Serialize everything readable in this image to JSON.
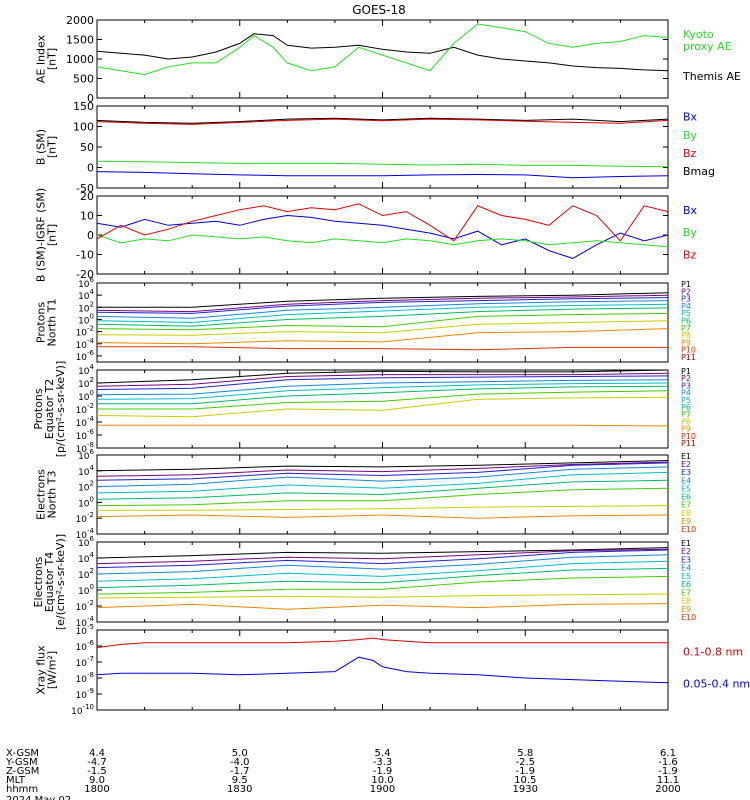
{
  "title": "GOES-18",
  "colors": {
    "black": "#000000",
    "green": "#22dd22",
    "red": "#dd0000",
    "blue": "#0000dd",
    "p": [
      "#000000",
      "#7a0080",
      "#2222cc",
      "#1188dd",
      "#00bbcc",
      "#00bb66",
      "#44cc00",
      "#cccc00",
      "#ee8800",
      "#dd3300",
      "#bb0000",
      "#880000"
    ]
  },
  "time_axis": {
    "hhmm_labels": [
      "1800",
      "1830",
      "1900",
      "1930",
      "2000"
    ],
    "row_labels": [
      "X-GSM",
      "Y-GSM",
      "Z-GSM",
      "MLT",
      "hhmm",
      "2024 May 02"
    ],
    "x_gsm": [
      "4.4",
      "5.0",
      "5.4",
      "5.8",
      "6.1"
    ],
    "y_gsm": [
      "-4.7",
      "-4.0",
      "-3.3",
      "-2.5",
      "-1.6"
    ],
    "z_gsm": [
      "-1.5",
      "-1.7",
      "-1.9",
      "-1.9",
      "-1.9"
    ],
    "mlt": [
      "9.0",
      "9.5",
      "10.0",
      "10.5",
      "11.1"
    ]
  },
  "chart_data": [
    {
      "id": "ae",
      "type": "line",
      "ylabel": [
        "AE Index",
        "[nT]"
      ],
      "ylim": [
        0,
        2000
      ],
      "ticks": [
        "2000",
        "1500",
        "1000",
        "500",
        "0"
      ],
      "legend": [
        {
          "text": "Kyoto",
          "color": "#22dd22"
        },
        {
          "text": "proxy AE",
          "color": "#22dd22"
        },
        {
          "text": "Themis AE",
          "color": "#000000"
        }
      ],
      "x": [
        0,
        5,
        10,
        15,
        20,
        25,
        30,
        33,
        37,
        40,
        45,
        50,
        55,
        60,
        65,
        70,
        75,
        80,
        85,
        90,
        95,
        100,
        105,
        110,
        115,
        120
      ],
      "series": [
        {
          "name": "Themis AE",
          "color": "#000000",
          "values": [
            1200,
            1150,
            1100,
            1000,
            1050,
            1180,
            1400,
            1650,
            1600,
            1350,
            1280,
            1300,
            1350,
            1250,
            1180,
            1150,
            1300,
            1100,
            1000,
            950,
            900,
            820,
            780,
            760,
            720,
            700
          ]
        },
        {
          "name": "Kyoto proxy AE",
          "color": "#22dd22",
          "values": [
            800,
            700,
            600,
            800,
            900,
            900,
            1300,
            1600,
            1300,
            900,
            700,
            800,
            1300,
            1100,
            900,
            700,
            1400,
            1900,
            1800,
            1700,
            1400,
            1300,
            1400,
            1450,
            1600,
            1550
          ]
        }
      ]
    },
    {
      "id": "bsm",
      "type": "line",
      "ylabel": [
        "B (SM)",
        "[nT]"
      ],
      "ylim": [
        -50,
        150
      ],
      "ticks": [
        "150",
        "100",
        "50",
        "0",
        "-50"
      ],
      "legend": [
        {
          "text": "Bx",
          "color": "#0000dd"
        },
        {
          "text": "By",
          "color": "#22dd22"
        },
        {
          "text": "Bz",
          "color": "#dd0000"
        },
        {
          "text": "Bmag",
          "color": "#000000"
        }
      ],
      "x": [
        0,
        10,
        20,
        30,
        40,
        50,
        60,
        70,
        80,
        90,
        100,
        110,
        120
      ],
      "series": [
        {
          "name": "Bmag",
          "color": "#000000",
          "values": [
            115,
            110,
            108,
            112,
            118,
            120,
            116,
            120,
            118,
            115,
            118,
            112,
            118
          ]
        },
        {
          "name": "Bz",
          "color": "#dd0000",
          "values": [
            112,
            108,
            105,
            110,
            115,
            118,
            114,
            118,
            116,
            113,
            110,
            108,
            115
          ]
        },
        {
          "name": "By",
          "color": "#22dd22",
          "values": [
            15,
            14,
            12,
            10,
            10,
            10,
            8,
            6,
            8,
            5,
            5,
            3,
            2
          ]
        },
        {
          "name": "Bx",
          "color": "#0000dd",
          "values": [
            -10,
            -12,
            -15,
            -18,
            -20,
            -20,
            -20,
            -18,
            -17,
            -18,
            -25,
            -22,
            -20
          ]
        }
      ]
    },
    {
      "id": "bigrf",
      "type": "line",
      "ylabel": [
        "B (SM)-IGRF (SM)",
        "[nT]"
      ],
      "ylim": [
        -20,
        20
      ],
      "ticks": [
        "20",
        "10",
        "0",
        "-10",
        "-20"
      ],
      "legend": [
        {
          "text": "Bx",
          "color": "#0000dd"
        },
        {
          "text": "By",
          "color": "#22dd22"
        },
        {
          "text": "Bz",
          "color": "#dd0000"
        }
      ],
      "x": [
        0,
        5,
        10,
        15,
        20,
        25,
        30,
        35,
        40,
        45,
        50,
        55,
        60,
        65,
        70,
        75,
        80,
        85,
        90,
        95,
        100,
        105,
        110,
        115,
        120
      ],
      "series": [
        {
          "name": "Bx",
          "color": "#0000dd",
          "values": [
            6,
            4,
            8,
            5,
            6,
            7,
            5,
            8,
            10,
            9,
            7,
            6,
            5,
            3,
            1,
            -2,
            2,
            -5,
            -2,
            -8,
            -12,
            -5,
            1,
            -3,
            0
          ]
        },
        {
          "name": "By",
          "color": "#22dd22",
          "values": [
            0,
            -4,
            -2,
            -3,
            0,
            -1,
            -2,
            -1,
            -3,
            -4,
            -2,
            -3,
            -4,
            -2,
            -3,
            -5,
            -3,
            -2,
            -3,
            -5,
            -4,
            -3,
            -4,
            -5,
            -6
          ]
        },
        {
          "name": "Bz",
          "color": "#dd0000",
          "values": [
            -2,
            5,
            0,
            3,
            7,
            10,
            13,
            15,
            12,
            14,
            13,
            16,
            10,
            12,
            5,
            -3,
            15,
            10,
            8,
            5,
            15,
            10,
            -3,
            15,
            12
          ]
        }
      ]
    },
    {
      "id": "pnorth",
      "type": "line",
      "log": true,
      "ylabel": [
        "Protons",
        "North T1"
      ],
      "ylim": [
        -7,
        6
      ],
      "tick_exps": [
        6,
        4,
        2,
        0,
        -2,
        -4,
        -6
      ],
      "legend_labels": [
        "P1",
        "P2",
        "P3",
        "P4",
        "P5",
        "P6",
        "P7",
        "P8",
        "P9",
        "P10",
        "P11"
      ],
      "x": [
        0,
        20,
        40,
        60,
        80,
        100,
        120
      ],
      "series": [
        {
          "name": "P1",
          "values": [
            2.0,
            2.0,
            3.0,
            3.5,
            3.8,
            4.0,
            4.4
          ]
        },
        {
          "name": "P2",
          "values": [
            1.5,
            1.3,
            2.5,
            3.1,
            3.5,
            3.7,
            4.0
          ]
        },
        {
          "name": "P3",
          "values": [
            1.2,
            1.0,
            2.2,
            2.8,
            3.1,
            3.4,
            3.6
          ]
        },
        {
          "name": "P4",
          "values": [
            0.5,
            0.2,
            1.5,
            2.0,
            2.6,
            2.9,
            3.1
          ]
        },
        {
          "name": "P5",
          "values": [
            -0.2,
            -0.5,
            0.8,
            1.4,
            2.0,
            2.3,
            2.5
          ]
        },
        {
          "name": "P6",
          "values": [
            -0.8,
            -1.1,
            0.0,
            0.5,
            1.3,
            1.7,
            1.9
          ]
        },
        {
          "name": "P7",
          "values": [
            -1.5,
            -1.7,
            -1.0,
            -1.2,
            0.5,
            0.8,
            1.0
          ]
        },
        {
          "name": "P8",
          "values": [
            -2.5,
            -2.6,
            -2.0,
            -2.2,
            -0.8,
            -0.5,
            -0.2
          ]
        },
        {
          "name": "P9",
          "values": [
            -3.8,
            -4.0,
            -3.5,
            -3.7,
            -2.2,
            -2.0,
            -1.5
          ]
        },
        {
          "name": "P10",
          "values": [
            -4.5,
            -4.5,
            -4.8,
            -4.8,
            -5.0,
            -4.6,
            -4.6
          ]
        }
      ]
    },
    {
      "id": "pequator",
      "type": "line",
      "log": true,
      "ylabel": [
        "Protons",
        "Equator T2",
        "[p/(cm²-s-sr-keV)]"
      ],
      "ylim": [
        -8,
        4
      ],
      "tick_exps": [
        4,
        2,
        0,
        -2,
        -4,
        -6,
        -8
      ],
      "legend_labels": [
        "P1",
        "P2",
        "P3",
        "P4",
        "P5",
        "P6",
        "P7",
        "P8",
        "P9",
        "P10",
        "P11"
      ],
      "x": [
        0,
        20,
        40,
        60,
        80,
        100,
        120
      ],
      "series": [
        {
          "name": "P1",
          "values": [
            2.0,
            2.5,
            3.5,
            3.8,
            3.7,
            3.7,
            4.0
          ]
        },
        {
          "name": "P2",
          "values": [
            1.5,
            1.8,
            3.0,
            3.3,
            3.3,
            3.3,
            3.5
          ]
        },
        {
          "name": "P3",
          "values": [
            1.0,
            1.2,
            2.5,
            2.8,
            2.9,
            3.0,
            3.1
          ]
        },
        {
          "name": "P4",
          "values": [
            0.2,
            0.3,
            1.5,
            2.0,
            2.2,
            2.4,
            2.5
          ]
        },
        {
          "name": "P5",
          "values": [
            -0.5,
            -0.4,
            0.8,
            1.3,
            1.7,
            1.9,
            2.0
          ]
        },
        {
          "name": "P6",
          "values": [
            -1.2,
            -1.2,
            0.0,
            0.5,
            1.1,
            1.4,
            1.5
          ]
        },
        {
          "name": "P7",
          "values": [
            -2.0,
            -2.0,
            -1.0,
            -0.8,
            0.3,
            0.6,
            0.8
          ]
        },
        {
          "name": "P8",
          "values": [
            -3.0,
            -3.2,
            -2.0,
            -2.2,
            -0.5,
            -0.3,
            -0.2
          ]
        },
        {
          "name": "P9",
          "values": [
            -4.5,
            -4.5,
            -4.5,
            -4.5,
            -4.5,
            -4.5,
            -4.6
          ]
        }
      ]
    },
    {
      "id": "enorth",
      "type": "line",
      "log": true,
      "ylabel": [
        "Electrons",
        "North T3"
      ],
      "ylim": [
        -4,
        6
      ],
      "tick_exps": [
        6,
        4,
        2,
        0,
        -2,
        -4
      ],
      "legend_labels": [
        "E1",
        "E2",
        "E3",
        "E4",
        "E5",
        "E6",
        "E7",
        "E8",
        "E9",
        "E10"
      ],
      "x": [
        0,
        20,
        40,
        60,
        80,
        100,
        120
      ],
      "series": [
        {
          "name": "E1",
          "values": [
            4.0,
            4.2,
            4.6,
            4.5,
            4.7,
            5.0,
            5.3
          ]
        },
        {
          "name": "E2",
          "values": [
            3.3,
            3.5,
            4.1,
            3.9,
            4.3,
            4.8,
            5.1
          ]
        },
        {
          "name": "E3",
          "values": [
            2.8,
            3.0,
            3.7,
            3.4,
            3.8,
            4.7,
            5.0
          ]
        },
        {
          "name": "E4",
          "values": [
            2.0,
            2.3,
            3.2,
            2.7,
            3.2,
            4.2,
            4.5
          ]
        },
        {
          "name": "E5",
          "values": [
            1.2,
            1.4,
            2.2,
            1.8,
            2.4,
            3.5,
            3.8
          ]
        },
        {
          "name": "E6",
          "values": [
            0.4,
            0.6,
            1.2,
            1.0,
            1.8,
            2.6,
            2.8
          ]
        },
        {
          "name": "E7",
          "values": [
            -0.4,
            -0.3,
            0.2,
            0.2,
            1.0,
            1.6,
            1.8
          ]
        },
        {
          "name": "E8",
          "values": [
            -1.0,
            -1.0,
            -0.9,
            -0.8,
            -0.6,
            -0.5,
            -0.4
          ]
        },
        {
          "name": "E9",
          "values": [
            -1.8,
            -1.6,
            -1.9,
            -1.6,
            -2.0,
            -1.7,
            -1.6
          ]
        }
      ]
    },
    {
      "id": "eequator",
      "type": "line",
      "log": true,
      "ylabel": [
        "Electrons",
        "Equator T4",
        "[e/(cm²-s-sr-keV)]"
      ],
      "ylim": [
        -4,
        6
      ],
      "tick_exps": [
        6,
        4,
        2,
        0,
        -2,
        -4
      ],
      "legend_labels": [
        "E1",
        "E2",
        "E3",
        "E4",
        "E5",
        "E6",
        "E7",
        "E8",
        "E9",
        "E10"
      ],
      "x": [
        0,
        20,
        40,
        60,
        80,
        100,
        120
      ],
      "series": [
        {
          "name": "E1",
          "values": [
            4.0,
            4.3,
            4.7,
            4.6,
            4.8,
            5.0,
            5.3
          ]
        },
        {
          "name": "E2",
          "values": [
            3.3,
            3.6,
            4.1,
            3.9,
            4.4,
            4.9,
            5.1
          ]
        },
        {
          "name": "E3",
          "values": [
            2.8,
            3.1,
            3.7,
            3.3,
            3.9,
            4.7,
            5.0
          ]
        },
        {
          "name": "E4",
          "values": [
            2.0,
            2.3,
            3.1,
            2.6,
            3.2,
            4.1,
            4.4
          ]
        },
        {
          "name": "E5",
          "values": [
            1.1,
            1.4,
            2.1,
            1.7,
            2.4,
            3.3,
            3.6
          ]
        },
        {
          "name": "E6",
          "values": [
            0.3,
            0.6,
            1.1,
            0.9,
            1.8,
            2.5,
            2.7
          ]
        },
        {
          "name": "E7",
          "values": [
            -0.5,
            -0.3,
            0.1,
            0.1,
            1.0,
            1.5,
            1.7
          ]
        },
        {
          "name": "E8",
          "values": [
            -1.0,
            -0.9,
            -0.8,
            -0.9,
            -0.7,
            -0.6,
            -0.5
          ]
        },
        {
          "name": "E9",
          "values": [
            -2.2,
            -1.8,
            -2.4,
            -1.9,
            -2.2,
            -1.8,
            -1.7
          ]
        }
      ]
    },
    {
      "id": "xray",
      "type": "line",
      "log": true,
      "ylabel": [
        "Xray flux",
        "[W/m²]"
      ],
      "ylim": [
        -10,
        -5
      ],
      "tick_exps": [
        -5,
        -6,
        -7,
        -8,
        -9,
        -10
      ],
      "legend": [
        {
          "text": "0.1-0.8 nm",
          "color": "#dd0000"
        },
        {
          "text": "0.05-0.4 nm",
          "color": "#0000dd"
        }
      ],
      "x": [
        0,
        5,
        10,
        20,
        30,
        40,
        50,
        55,
        58,
        60,
        65,
        70,
        80,
        90,
        100,
        110,
        120
      ],
      "series": [
        {
          "name": "0.1-0.8 nm",
          "color": "#dd0000",
          "values": [
            -6.1,
            -5.9,
            -5.8,
            -5.8,
            -5.8,
            -5.8,
            -5.7,
            -5.6,
            -5.5,
            -5.6,
            -5.7,
            -5.8,
            -5.8,
            -5.8,
            -5.8,
            -5.8,
            -5.8
          ]
        },
        {
          "name": "0.05-0.4 nm",
          "color": "#0000dd",
          "values": [
            -7.8,
            -7.7,
            -7.7,
            -7.7,
            -7.8,
            -7.7,
            -7.6,
            -6.7,
            -6.9,
            -7.3,
            -7.6,
            -7.7,
            -7.8,
            -8.0,
            -8.1,
            -8.2,
            -8.3
          ]
        }
      ]
    }
  ]
}
